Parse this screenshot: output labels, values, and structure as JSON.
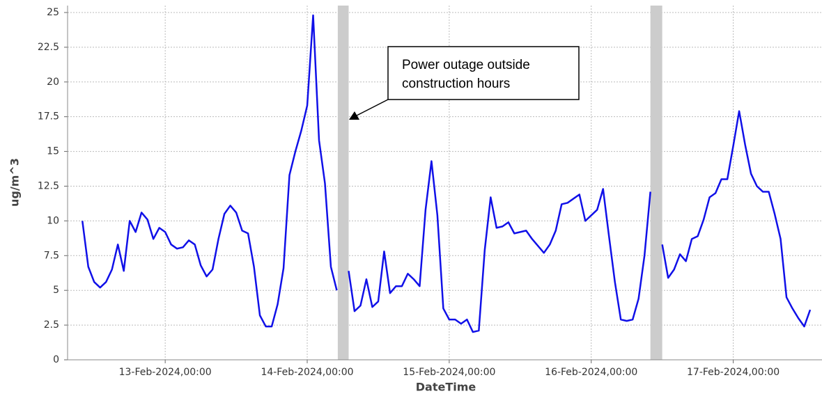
{
  "chart_data": {
    "type": "line",
    "xlabel": "DateTime",
    "ylabel": "ug/m^3",
    "x": [
      "2024-02-12 10:00",
      "2024-02-12 11:00",
      "2024-02-12 12:00",
      "2024-02-12 13:00",
      "2024-02-12 14:00",
      "2024-02-12 15:00",
      "2024-02-12 16:00",
      "2024-02-12 17:00",
      "2024-02-12 18:00",
      "2024-02-12 19:00",
      "2024-02-12 20:00",
      "2024-02-12 21:00",
      "2024-02-12 22:00",
      "2024-02-12 23:00",
      "2024-02-13 00:00",
      "2024-02-13 01:00",
      "2024-02-13 02:00",
      "2024-02-13 03:00",
      "2024-02-13 04:00",
      "2024-02-13 05:00",
      "2024-02-13 06:00",
      "2024-02-13 07:00",
      "2024-02-13 08:00",
      "2024-02-13 09:00",
      "2024-02-13 10:00",
      "2024-02-13 11:00",
      "2024-02-13 12:00",
      "2024-02-13 13:00",
      "2024-02-13 14:00",
      "2024-02-13 15:00",
      "2024-02-13 16:00",
      "2024-02-13 17:00",
      "2024-02-13 18:00",
      "2024-02-13 19:00",
      "2024-02-13 20:00",
      "2024-02-13 21:00",
      "2024-02-13 22:00",
      "2024-02-13 23:00",
      "2024-02-14 00:00",
      "2024-02-14 01:00",
      "2024-02-14 02:00",
      "2024-02-14 03:00",
      "2024-02-14 04:00",
      "2024-02-14 05:00",
      "2024-02-14 06:00",
      "2024-02-14 07:00",
      "2024-02-14 08:00",
      "2024-02-14 09:00",
      "2024-02-14 10:00",
      "2024-02-14 11:00",
      "2024-02-14 12:00",
      "2024-02-14 13:00",
      "2024-02-14 14:00",
      "2024-02-14 15:00",
      "2024-02-14 16:00",
      "2024-02-14 17:00",
      "2024-02-14 18:00",
      "2024-02-14 19:00",
      "2024-02-14 20:00",
      "2024-02-14 21:00",
      "2024-02-14 22:00",
      "2024-02-14 23:00",
      "2024-02-15 00:00",
      "2024-02-15 01:00",
      "2024-02-15 02:00",
      "2024-02-15 03:00",
      "2024-02-15 04:00",
      "2024-02-15 05:00",
      "2024-02-15 06:00",
      "2024-02-15 07:00",
      "2024-02-15 08:00",
      "2024-02-15 09:00",
      "2024-02-15 10:00",
      "2024-02-15 11:00",
      "2024-02-15 12:00",
      "2024-02-15 13:00",
      "2024-02-15 14:00",
      "2024-02-15 15:00",
      "2024-02-15 16:00",
      "2024-02-15 17:00",
      "2024-02-15 18:00",
      "2024-02-15 19:00",
      "2024-02-15 20:00",
      "2024-02-15 21:00",
      "2024-02-15 22:00",
      "2024-02-15 23:00",
      "2024-02-16 00:00",
      "2024-02-16 01:00",
      "2024-02-16 02:00",
      "2024-02-16 03:00",
      "2024-02-16 04:00",
      "2024-02-16 05:00",
      "2024-02-16 06:00",
      "2024-02-16 07:00",
      "2024-02-16 08:00",
      "2024-02-16 09:00",
      "2024-02-16 10:00",
      "2024-02-16 11:00",
      "2024-02-16 12:00",
      "2024-02-16 13:00",
      "2024-02-16 14:00",
      "2024-02-16 15:00",
      "2024-02-16 16:00",
      "2024-02-16 17:00",
      "2024-02-16 18:00",
      "2024-02-16 19:00",
      "2024-02-16 20:00",
      "2024-02-16 21:00",
      "2024-02-16 22:00",
      "2024-02-16 23:00",
      "2024-02-17 00:00",
      "2024-02-17 01:00",
      "2024-02-17 02:00",
      "2024-02-17 03:00",
      "2024-02-17 04:00",
      "2024-02-17 05:00",
      "2024-02-17 06:00",
      "2024-02-17 07:00",
      "2024-02-17 08:00",
      "2024-02-17 09:00",
      "2024-02-17 10:00",
      "2024-02-17 11:00",
      "2024-02-17 12:00",
      "2024-02-17 13:00"
    ],
    "series": [
      {
        "color": "#1010e8",
        "values": [
          10.0,
          6.7,
          5.6,
          5.2,
          5.6,
          6.5,
          8.3,
          6.4,
          10.0,
          9.2,
          10.6,
          10.1,
          8.7,
          9.5,
          9.2,
          8.3,
          8.0,
          8.1,
          8.6,
          8.3,
          6.8,
          6.0,
          6.5,
          8.7,
          10.5,
          11.1,
          10.6,
          9.3,
          9.1,
          6.7,
          3.2,
          2.4,
          2.4,
          4.0,
          6.6,
          13.3,
          15.0,
          16.5,
          18.3,
          24.8,
          15.8,
          12.7,
          6.7,
          5.0,
          null,
          6.4,
          3.5,
          3.9,
          5.8,
          3.8,
          4.2,
          7.8,
          4.8,
          5.3,
          5.3,
          6.2,
          5.8,
          5.3,
          10.8,
          14.3,
          10.4,
          3.7,
          2.9,
          2.9,
          2.6,
          2.9,
          2.0,
          2.1,
          7.9,
          11.7,
          9.5,
          9.6,
          9.9,
          9.1,
          9.2,
          9.3,
          8.7,
          8.2,
          7.7,
          8.3,
          9.3,
          11.2,
          11.3,
          11.6,
          11.9,
          10.0,
          10.4,
          10.8,
          12.3,
          8.9,
          5.6,
          2.9,
          2.8,
          2.9,
          4.4,
          7.5,
          12.1,
          null,
          8.3,
          5.9,
          6.5,
          7.6,
          7.1,
          8.7,
          8.9,
          10.1,
          11.7,
          12.0,
          13.0,
          13.0,
          15.4,
          17.9,
          15.5,
          13.4,
          12.5,
          12.1,
          12.1,
          10.5,
          8.7,
          4.5,
          3.7,
          3.0,
          2.4,
          3.6
        ]
      }
    ],
    "shaded_ranges": [
      [
        "2024-02-14 05:10",
        "2024-02-14 07:00"
      ],
      [
        "2024-02-16 10:00",
        "2024-02-16 12:00"
      ]
    ],
    "shade_color": "#cccccc",
    "annotation": {
      "lines": [
        "Power outage outside",
        "construction hours"
      ]
    },
    "xlim": [
      "2024-02-12 07:30",
      "2024-02-17 15:00"
    ],
    "xticks": [
      {
        "value": "2024-02-13 00:00",
        "label": "13-Feb-2024,00:00"
      },
      {
        "value": "2024-02-14 00:00",
        "label": "14-Feb-2024,00:00"
      },
      {
        "value": "2024-02-15 00:00",
        "label": "15-Feb-2024,00:00"
      },
      {
        "value": "2024-02-16 00:00",
        "label": "16-Feb-2024,00:00"
      },
      {
        "value": "2024-02-17 00:00",
        "label": "17-Feb-2024,00:00"
      }
    ],
    "ylim": [
      0,
      25.5
    ],
    "yticks": [
      0,
      2.5,
      5,
      7.5,
      10,
      12.5,
      15,
      17.5,
      20,
      22.5,
      25
    ],
    "grid": true
  }
}
